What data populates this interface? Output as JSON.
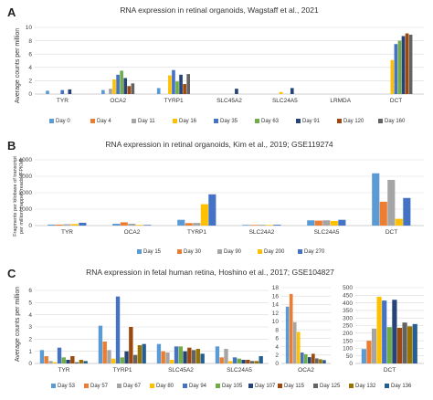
{
  "panel_letters": [
    "A",
    "B",
    "C"
  ],
  "chart_data": [
    {
      "type": "bar",
      "title": "RNA expression in retinal organoids, Wagstaff et al., 2021",
      "ylabel": "Average counts per million",
      "ylim": [
        0,
        10
      ],
      "yticks": [
        0,
        2,
        4,
        6,
        8,
        10
      ],
      "grid": true,
      "legend_position": "bottom",
      "categories": [
        "TYR",
        "OCA2",
        "TYRP1",
        "SLC45A2",
        "SLC24A5",
        "LRMDA",
        "DCT"
      ],
      "series": [
        {
          "name": "Day 0",
          "color": "#5b9bd5",
          "values": [
            0.5,
            0.6,
            0.9,
            0.0,
            0.0,
            0.0,
            0.0
          ]
        },
        {
          "name": "Day 4",
          "color": "#ed7d31",
          "values": [
            0.0,
            0.0,
            0.0,
            0.0,
            0.0,
            0.0,
            0.0
          ]
        },
        {
          "name": "Day 11",
          "color": "#a5a5a5",
          "values": [
            0.0,
            0.8,
            0.0,
            0.0,
            0.0,
            0.0,
            0.0
          ]
        },
        {
          "name": "Day 16",
          "color": "#ffc000",
          "values": [
            0.0,
            2.2,
            2.8,
            0.0,
            0.3,
            0.0,
            5.1
          ]
        },
        {
          "name": "Day 35",
          "color": "#4472c4",
          "values": [
            0.6,
            2.9,
            3.6,
            0.0,
            0.0,
            0.0,
            7.5
          ]
        },
        {
          "name": "Day 63",
          "color": "#70ad47",
          "values": [
            0.0,
            3.5,
            1.9,
            0.0,
            0.0,
            0.0,
            8.0
          ]
        },
        {
          "name": "Day 91",
          "color": "#264478",
          "values": [
            0.7,
            2.4,
            2.9,
            0.8,
            0.9,
            0.0,
            8.7
          ]
        },
        {
          "name": "Day 120",
          "color": "#9e480e",
          "values": [
            0.0,
            1.2,
            1.5,
            0.0,
            0.0,
            0.0,
            9.1
          ]
        },
        {
          "name": "Day 160",
          "color": "#636363",
          "values": [
            0.0,
            1.6,
            3.0,
            0.0,
            0.0,
            0.0,
            8.9
          ]
        }
      ]
    },
    {
      "type": "bar",
      "title": "RNA expression in retinal organoids, Kim et al., 2019; GSE119274",
      "ylabel_lines": [
        "Fragments per kilobase of transcript",
        "per million mapped reads (FPKM)"
      ],
      "ylim": [
        0,
        4000
      ],
      "yticks": [
        0,
        1000,
        2000,
        3000,
        4000
      ],
      "grid": true,
      "legend_position": "bottom",
      "categories": [
        "TYR",
        "OCA2",
        "TYRP1",
        "SLC24A2",
        "SLC24A5",
        "DCT"
      ],
      "series": [
        {
          "name": "Day 15",
          "color": "#5b9bd5",
          "values": [
            60,
            110,
            350,
            40,
            320,
            3180
          ]
        },
        {
          "name": "Day 30",
          "color": "#ed7d31",
          "values": [
            60,
            200,
            150,
            40,
            300,
            1450
          ]
        },
        {
          "name": "Day 90",
          "color": "#a5a5a5",
          "values": [
            80,
            110,
            160,
            50,
            320,
            2780
          ]
        },
        {
          "name": "Day 200",
          "color": "#ffc000",
          "values": [
            90,
            40,
            1300,
            40,
            280,
            410
          ]
        },
        {
          "name": "Day 270",
          "color": "#4472c4",
          "values": [
            170,
            40,
            1900,
            50,
            350,
            1680
          ]
        }
      ]
    },
    {
      "type": "bar",
      "title": "RNA expression in fetal human retina, Hoshino et al., 2017; GSE104827",
      "ylabel": "Average counts per million",
      "grid": true,
      "legend_position": "bottom",
      "legend": [
        {
          "name": "Day 53",
          "color": "#5b9bd5"
        },
        {
          "name": "Day 57",
          "color": "#ed7d31"
        },
        {
          "name": "Day 67",
          "color": "#a5a5a5"
        },
        {
          "name": "Day 80",
          "color": "#ffc000"
        },
        {
          "name": "Day 94",
          "color": "#4472c4"
        },
        {
          "name": "Day 105",
          "color": "#70ad47"
        },
        {
          "name": "Day 107",
          "color": "#264478"
        },
        {
          "name": "Day 115",
          "color": "#9e480e"
        },
        {
          "name": "Day 125",
          "color": "#636363"
        },
        {
          "name": "Day 132",
          "color": "#997300"
        },
        {
          "name": "Day 136",
          "color": "#255e91"
        }
      ],
      "subcharts": [
        {
          "ylim": [
            0,
            6
          ],
          "yticks": [
            0,
            1,
            2,
            3,
            4,
            5,
            6
          ],
          "categories": [
            "TYR",
            "TYRP1",
            "SLC45A2",
            "SLC24A5"
          ],
          "values_by_series": [
            [
              1.1,
              3.1,
              1.6,
              1.4
            ],
            [
              0.6,
              1.8,
              1.0,
              0.5
            ],
            [
              0.2,
              1.1,
              0.9,
              1.2
            ],
            [
              0.1,
              0.4,
              0.3,
              0.2
            ],
            [
              1.3,
              5.5,
              1.4,
              0.5
            ],
            [
              0.5,
              0.5,
              1.4,
              0.4
            ],
            [
              0.3,
              1.0,
              1.0,
              0.3
            ],
            [
              0.6,
              3.0,
              1.3,
              0.3
            ],
            [
              0.1,
              0.7,
              1.1,
              0.2
            ],
            [
              0.3,
              1.5,
              1.2,
              0.2
            ],
            [
              0.2,
              1.6,
              0.8,
              0.6
            ]
          ]
        },
        {
          "ylim": [
            0,
            18
          ],
          "yticks": [
            0,
            2,
            4,
            6,
            8,
            10,
            12,
            14,
            16,
            18
          ],
          "categories": [
            "OCA2"
          ],
          "values_by_series": [
            [
              13.5
            ],
            [
              16.5
            ],
            [
              9.8
            ],
            [
              7.5
            ],
            [
              2.6
            ],
            [
              2.2
            ],
            [
              1.5
            ],
            [
              2.3
            ],
            [
              1.2
            ],
            [
              1.0
            ],
            [
              0.8
            ]
          ]
        },
        {
          "ylim": [
            0,
            500
          ],
          "yticks": [
            0,
            50,
            100,
            150,
            200,
            250,
            300,
            350,
            400,
            450,
            500
          ],
          "categories": [
            "DCT"
          ],
          "values_by_series": [
            [
              95
            ],
            [
              150
            ],
            [
              230
            ],
            [
              440
            ],
            [
              415
            ],
            [
              240
            ],
            [
              420
            ],
            [
              235
            ],
            [
              270
            ],
            [
              245
            ],
            [
              260
            ]
          ]
        }
      ]
    }
  ]
}
